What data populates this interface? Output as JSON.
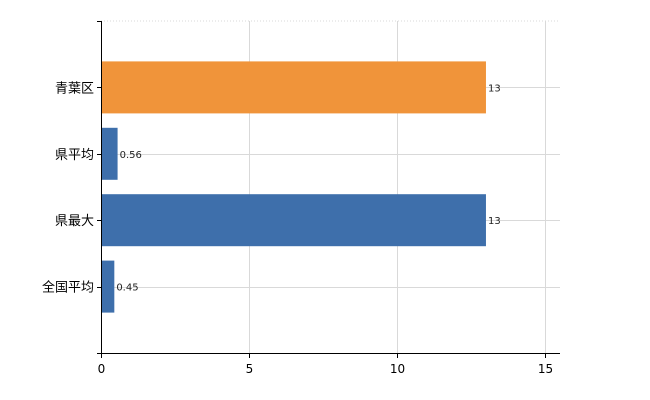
{
  "chart_data": {
    "type": "bar",
    "orientation": "horizontal",
    "categories": [
      "青葉区",
      "県平均",
      "県最大",
      "全国平均"
    ],
    "values": [
      13,
      0.56,
      13,
      0.45
    ],
    "value_labels": [
      "13",
      "0.56",
      "13",
      "0.45"
    ],
    "colors": [
      "#f0943a",
      "#3e6fab",
      "#3e6fab",
      "#3e6fab"
    ],
    "xlim": [
      0,
      15.5
    ],
    "xticks": [
      0,
      5,
      10,
      15
    ],
    "xtick_labels": [
      "0",
      "5",
      "10",
      "15"
    ],
    "grid": true
  }
}
